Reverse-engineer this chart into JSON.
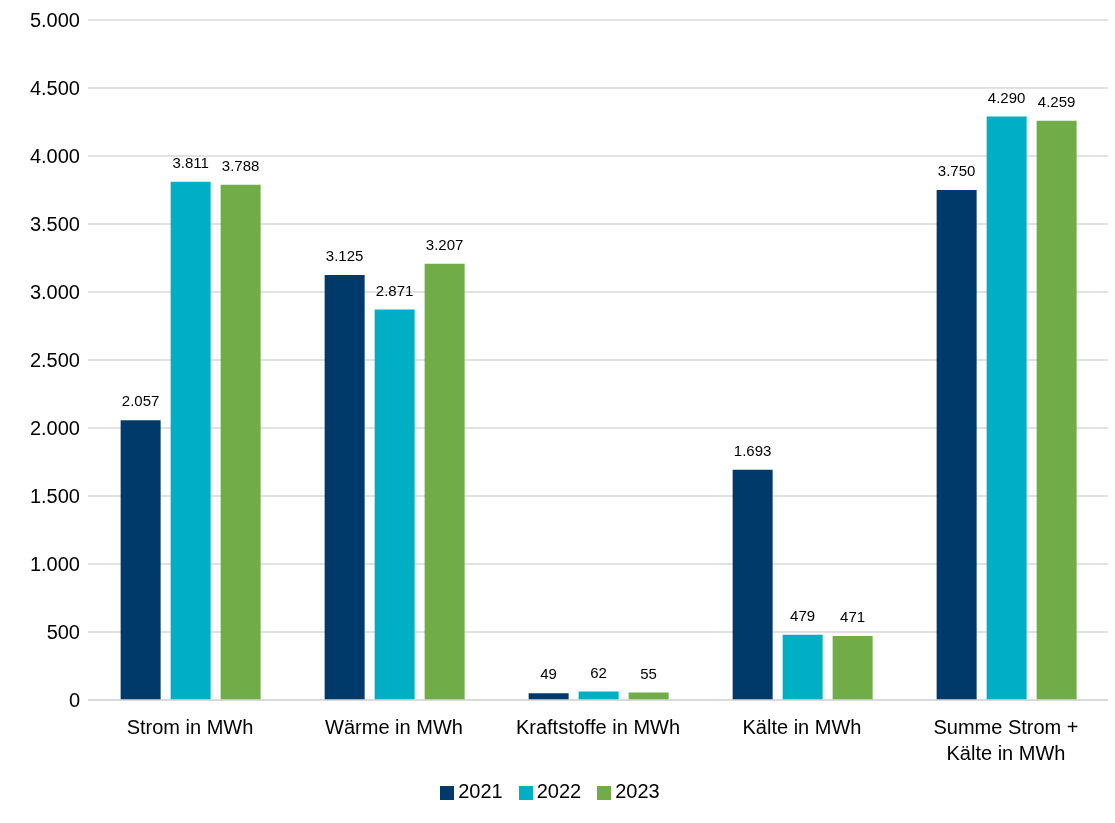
{
  "chart_data": {
    "type": "bar",
    "categories": [
      "Strom in MWh",
      "Wärme in MWh",
      "Kraftstoffe in MWh",
      "Kälte in MWh",
      "Summe Strom + Kälte in MWh"
    ],
    "series": [
      {
        "name": "2021",
        "color": "#003a6b",
        "values": [
          2057,
          3125,
          49,
          1693,
          3750
        ],
        "value_labels": [
          "2.057",
          "3.125",
          "49",
          "1.693",
          "3.750"
        ]
      },
      {
        "name": "2022",
        "color": "#00afc4",
        "values": [
          3811,
          2871,
          62,
          479,
          4290
        ],
        "value_labels": [
          "3.811",
          "2.871",
          "62",
          "479",
          "4.290"
        ]
      },
      {
        "name": "2023",
        "color": "#70ad47",
        "values": [
          3788,
          3207,
          55,
          471,
          4259
        ],
        "value_labels": [
          "3.788",
          "3.207",
          "55",
          "471",
          "4.259"
        ]
      }
    ],
    "ylim": [
      0,
      5000
    ],
    "yticks": [
      0,
      {
        "value": 500,
        "label": "500"
      },
      {
        "value": 1000,
        "label": "1.000"
      },
      {
        "value": 1500,
        "label": "1.500"
      },
      {
        "value": 2000,
        "label": "2.000"
      },
      {
        "value": 2500,
        "label": "2.500"
      },
      {
        "value": 3000,
        "label": "3.000"
      },
      {
        "value": 3500,
        "label": "3.500"
      },
      {
        "value": 4000,
        "label": "4.000"
      },
      {
        "value": 4500,
        "label": "4.500"
      },
      {
        "value": 5000,
        "label": "5.000"
      }
    ],
    "grid": "y",
    "legend": "bottom"
  }
}
